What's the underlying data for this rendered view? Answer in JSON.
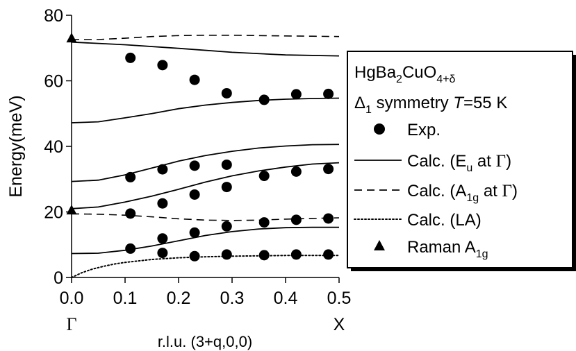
{
  "chart_data": {
    "type": "scatter",
    "xlabel": "r.l.u. (3+q,0,0)",
    "ylabel": "Energy(meV)",
    "xlim": [
      0.0,
      0.5
    ],
    "ylim": [
      0,
      80
    ],
    "x_ticks": [
      "0.0",
      "0.1",
      "0.2",
      "0.3",
      "0.4",
      "0.5"
    ],
    "y_ticks": [
      "0",
      "20",
      "40",
      "60",
      "80"
    ],
    "x_symbols": [
      {
        "x": 0.0,
        "label": "Γ"
      },
      {
        "x": 0.5,
        "label": "X"
      }
    ],
    "legend": {
      "compound_parts": [
        "HgBa",
        "2",
        "CuO",
        "4+δ"
      ],
      "symmetry_parts": [
        "Δ",
        "1",
        " symmetry  ",
        "T",
        "=55 K"
      ],
      "placement": "right",
      "items": [
        {
          "marker": "circle",
          "label": "Exp."
        },
        {
          "marker": "solid-line",
          "label_parts": [
            "Calc. (E",
            "u",
            " at  ",
            "Γ",
            ")"
          ]
        },
        {
          "marker": "dashed-line",
          "label_parts": [
            "Calc. (A",
            "1g",
            " at  ",
            "Γ",
            ")"
          ]
        },
        {
          "marker": "dotted-line",
          "label": "Calc. (LA)"
        },
        {
          "marker": "triangle",
          "label_parts": [
            "Raman A",
            "1g"
          ]
        }
      ]
    },
    "series": [
      {
        "name": "Exp.",
        "kind": "points",
        "points": [
          [
            0.11,
            67.0
          ],
          [
            0.17,
            64.8
          ],
          [
            0.23,
            60.3
          ],
          [
            0.29,
            56.2
          ],
          [
            0.36,
            54.2
          ],
          [
            0.42,
            55.9
          ],
          [
            0.48,
            56.0
          ],
          [
            0.11,
            30.6
          ],
          [
            0.17,
            33.0
          ],
          [
            0.23,
            34.1
          ],
          [
            0.29,
            34.4
          ],
          [
            0.36,
            31.0
          ],
          [
            0.42,
            32.3
          ],
          [
            0.48,
            33.1
          ],
          [
            0.17,
            22.6
          ],
          [
            0.23,
            25.3
          ],
          [
            0.29,
            27.6
          ],
          [
            0.11,
            19.5
          ],
          [
            0.23,
            13.7
          ],
          [
            0.29,
            15.6
          ],
          [
            0.36,
            16.8
          ],
          [
            0.42,
            17.6
          ],
          [
            0.48,
            18.0
          ],
          [
            0.11,
            8.8
          ],
          [
            0.17,
            11.9
          ],
          [
            0.17,
            7.5
          ],
          [
            0.23,
            6.5
          ],
          [
            0.29,
            7.0
          ],
          [
            0.36,
            6.8
          ],
          [
            0.42,
            7.0
          ],
          [
            0.48,
            7.0
          ]
        ]
      },
      {
        "name": "Raman A1g",
        "kind": "triangles",
        "points": [
          [
            0.0,
            73.0
          ],
          [
            0.0,
            20.5
          ]
        ]
      },
      {
        "name": "Calc. (Eu at Γ)",
        "kind": "solid",
        "curves": [
          [
            [
              0.0,
              71.8
            ],
            [
              0.1,
              71.0
            ],
            [
              0.2,
              69.9
            ],
            [
              0.3,
              68.7
            ],
            [
              0.4,
              67.9
            ],
            [
              0.5,
              67.6
            ]
          ],
          [
            [
              0.0,
              47.2
            ],
            [
              0.05,
              47.5
            ],
            [
              0.1,
              48.7
            ],
            [
              0.15,
              50.0
            ],
            [
              0.2,
              51.5
            ],
            [
              0.25,
              52.6
            ],
            [
              0.3,
              53.4
            ],
            [
              0.35,
              54.0
            ],
            [
              0.4,
              54.4
            ],
            [
              0.45,
              54.6
            ],
            [
              0.5,
              54.7
            ]
          ],
          [
            [
              0.0,
              29.3
            ],
            [
              0.05,
              29.7
            ],
            [
              0.1,
              31.3
            ],
            [
              0.15,
              33.4
            ],
            [
              0.2,
              35.5
            ],
            [
              0.25,
              37.2
            ],
            [
              0.3,
              38.5
            ],
            [
              0.35,
              39.5
            ],
            [
              0.4,
              40.1
            ],
            [
              0.45,
              40.5
            ],
            [
              0.5,
              40.6
            ]
          ],
          [
            [
              0.0,
              21.0
            ],
            [
              0.05,
              21.5
            ],
            [
              0.1,
              23.0
            ],
            [
              0.15,
              24.8
            ],
            [
              0.2,
              26.9
            ],
            [
              0.25,
              29.1
            ],
            [
              0.3,
              31.0
            ],
            [
              0.35,
              32.5
            ],
            [
              0.4,
              33.7
            ],
            [
              0.45,
              34.6
            ],
            [
              0.5,
              35.0
            ]
          ],
          [
            [
              0.0,
              7.3
            ],
            [
              0.05,
              7.4
            ],
            [
              0.1,
              8.3
            ],
            [
              0.15,
              9.6
            ],
            [
              0.2,
              11.2
            ],
            [
              0.25,
              12.8
            ],
            [
              0.3,
              14.0
            ],
            [
              0.35,
              14.8
            ],
            [
              0.4,
              15.2
            ],
            [
              0.45,
              15.3
            ],
            [
              0.5,
              15.3
            ]
          ]
        ]
      },
      {
        "name": "Calc. (A1g at Γ)",
        "kind": "dashed",
        "curves": [
          [
            [
              0.0,
              72.6
            ],
            [
              0.05,
              72.6
            ],
            [
              0.1,
              73.0
            ],
            [
              0.15,
              73.5
            ],
            [
              0.2,
              73.8
            ],
            [
              0.25,
              73.9
            ],
            [
              0.3,
              73.9
            ],
            [
              0.35,
              73.8
            ],
            [
              0.4,
              73.7
            ],
            [
              0.45,
              73.6
            ],
            [
              0.5,
              73.5
            ]
          ],
          [
            [
              0.0,
              19.4
            ],
            [
              0.05,
              19.3
            ],
            [
              0.1,
              19.0
            ],
            [
              0.15,
              18.5
            ],
            [
              0.2,
              17.9
            ],
            [
              0.25,
              17.5
            ],
            [
              0.3,
              17.4
            ],
            [
              0.35,
              17.5
            ],
            [
              0.4,
              17.8
            ],
            [
              0.45,
              18.0
            ],
            [
              0.5,
              18.2
            ]
          ]
        ]
      },
      {
        "name": "Calc. (LA)",
        "kind": "dotted",
        "curves": [
          [
            [
              0.0,
              0.0
            ],
            [
              0.02,
              1.5
            ],
            [
              0.04,
              2.6
            ],
            [
              0.06,
              3.4
            ],
            [
              0.08,
              4.1
            ],
            [
              0.1,
              4.6
            ],
            [
              0.15,
              5.5
            ],
            [
              0.2,
              6.0
            ],
            [
              0.25,
              6.3
            ],
            [
              0.3,
              6.5
            ],
            [
              0.35,
              6.6
            ],
            [
              0.4,
              6.7
            ],
            [
              0.45,
              6.7
            ],
            [
              0.5,
              6.7
            ]
          ]
        ]
      }
    ]
  }
}
